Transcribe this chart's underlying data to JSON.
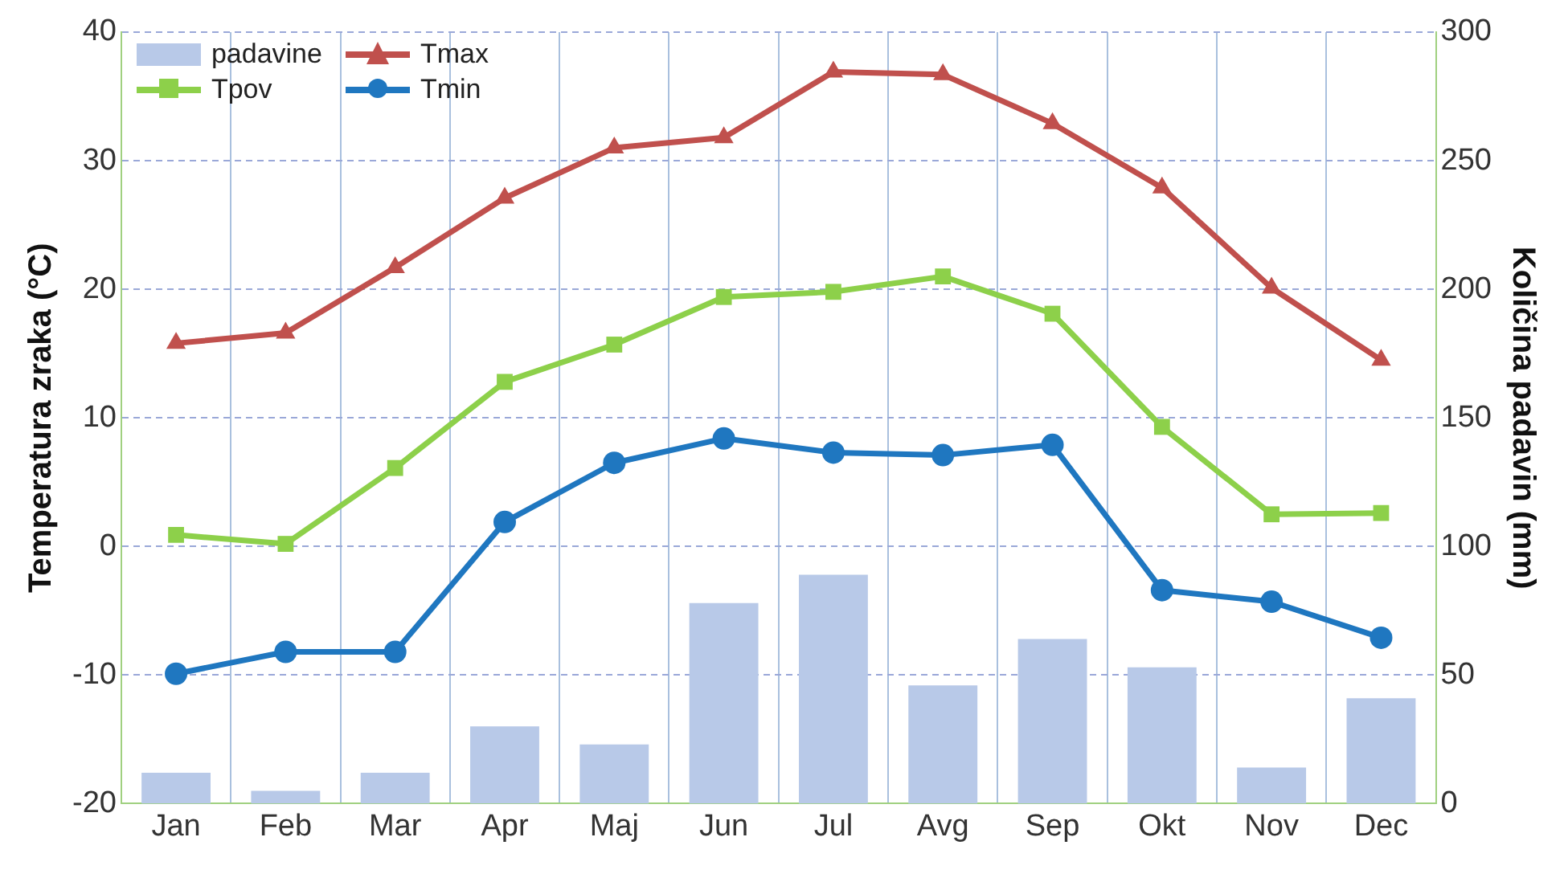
{
  "chart_data": {
    "type": "line",
    "ylabel": "Temperatura zraka (°C)",
    "y2label": "Količina padavin (mm)",
    "categories": [
      "Jan",
      "Feb",
      "Mar",
      "Apr",
      "Maj",
      "Jun",
      "Jul",
      "Avg",
      "Sep",
      "Okt",
      "Nov",
      "Dec"
    ],
    "series": [
      {
        "name": "padavine",
        "type": "bar",
        "axis": "y2",
        "color": "#b8c9e8",
        "values": [
          12,
          5,
          12,
          30,
          23,
          78,
          89,
          46,
          64,
          53,
          14,
          41
        ]
      },
      {
        "name": "Tmax",
        "color": "#c0504d",
        "marker": "triangle",
        "values": [
          15.8,
          16.6,
          21.7,
          27.1,
          31.0,
          31.8,
          36.9,
          36.7,
          32.9,
          27.9,
          20.1,
          14.5
        ]
      },
      {
        "name": "Tpov",
        "color": "#8dd04a",
        "marker": "square",
        "values": [
          0.9,
          0.2,
          6.1,
          12.8,
          15.7,
          19.4,
          19.8,
          21.0,
          18.1,
          9.3,
          2.5,
          2.6
        ]
      },
      {
        "name": "Tmin",
        "color": "#1f77c0",
        "marker": "circle",
        "values": [
          -9.9,
          -8.2,
          -8.2,
          1.9,
          6.5,
          8.4,
          7.3,
          7.1,
          7.9,
          -3.4,
          -4.3,
          -7.1
        ]
      }
    ],
    "ylim": [
      -20,
      40
    ],
    "yticks": [
      -20,
      -10,
      0,
      10,
      20,
      30,
      40
    ],
    "y2lim": [
      0,
      300
    ],
    "y2ticks": [
      0,
      50,
      100,
      150,
      200,
      250,
      300
    ],
    "grid": true,
    "legend": "top left"
  }
}
